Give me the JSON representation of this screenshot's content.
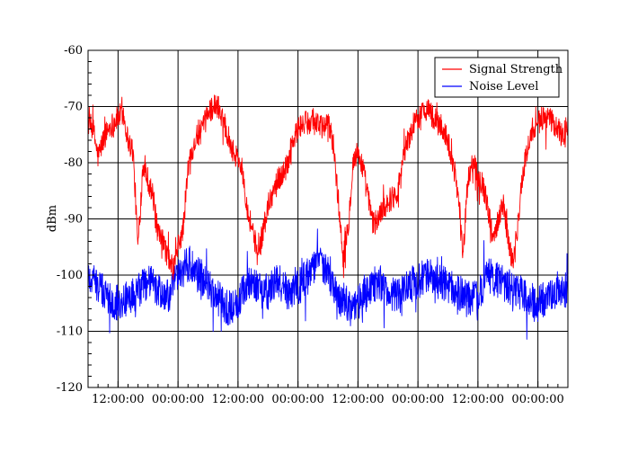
{
  "chart_data": {
    "type": "line",
    "title": "",
    "xlabel": "",
    "ylabel": "dBm",
    "ylim": [
      -120,
      -60
    ],
    "yticks": [
      -60,
      -70,
      -80,
      -90,
      -100,
      -110,
      -120
    ],
    "x_tick_labels": [
      "12:00:00",
      "00:00:00",
      "12:00:00",
      "00:00:00",
      "12:00:00",
      "00:00:00",
      "12:00:00",
      "00:00:00"
    ],
    "x_range_hours": [
      0,
      96
    ],
    "grid": true,
    "legend_position": "top-right",
    "series": [
      {
        "name": "Signal Strength",
        "color": "#ff0000",
        "x_hours": [
          0,
          1,
          2,
          3,
          4,
          5,
          6,
          7,
          8,
          9,
          10,
          11,
          12,
          13,
          14,
          15,
          16,
          17,
          18,
          19,
          20,
          21,
          22,
          23,
          24,
          25,
          26,
          27,
          28,
          29,
          30,
          31,
          32,
          33,
          34,
          35,
          36,
          37,
          38,
          39,
          40,
          41,
          42,
          43,
          44,
          45,
          46,
          47,
          48,
          49,
          50,
          51,
          52,
          53,
          54,
          55,
          56,
          57,
          58,
          59,
          60,
          61,
          62,
          63,
          64,
          65,
          66,
          67,
          68,
          69,
          70,
          71,
          72,
          73,
          74,
          75,
          76,
          77,
          78,
          79,
          80,
          81,
          82,
          83,
          84,
          85,
          86,
          87,
          88,
          89,
          90,
          91,
          92,
          93,
          94,
          95,
          96
        ],
        "values": [
          -73,
          -74,
          -79,
          -76,
          -74,
          -73,
          -72,
          -71,
          -76,
          -78,
          -95,
          -80,
          -83,
          -86,
          -93,
          -94,
          -97,
          -99,
          -95,
          -92,
          -81,
          -77,
          -75,
          -74,
          -71,
          -70,
          -70,
          -72,
          -75,
          -78,
          -79,
          -82,
          -89,
          -92,
          -97,
          -92,
          -88,
          -85,
          -83,
          -82,
          -80,
          -76,
          -74,
          -73,
          -73,
          -72,
          -73,
          -74,
          -73,
          -76,
          -86,
          -97,
          -92,
          -80,
          -78,
          -81,
          -86,
          -91,
          -90,
          -88,
          -87,
          -86,
          -85,
          -79,
          -76,
          -74,
          -72,
          -71,
          -70,
          -72,
          -73,
          -74,
          -76,
          -80,
          -85,
          -97,
          -83,
          -80,
          -82,
          -84,
          -88,
          -94,
          -90,
          -87,
          -93,
          -98,
          -91,
          -82,
          -77,
          -74,
          -73,
          -72,
          -72,
          -73,
          -74,
          -75,
          -73
        ]
      },
      {
        "name": "Noise Level",
        "color": "#0000ff",
        "x_hours": [
          0,
          2,
          4,
          6,
          8,
          10,
          12,
          14,
          16,
          18,
          20,
          22,
          24,
          26,
          28,
          30,
          32,
          34,
          36,
          38,
          40,
          42,
          44,
          46,
          48,
          50,
          52,
          54,
          56,
          58,
          60,
          62,
          64,
          66,
          68,
          70,
          72,
          74,
          76,
          78,
          80,
          82,
          84,
          86,
          88,
          90,
          92,
          94,
          96
        ],
        "values": [
          -100,
          -102,
          -104,
          -105,
          -104,
          -103,
          -101,
          -103,
          -104,
          -100,
          -98,
          -100,
          -102,
          -104,
          -106,
          -105,
          -101,
          -102,
          -103,
          -101,
          -103,
          -102,
          -100,
          -97,
          -100,
          -104,
          -105,
          -105,
          -103,
          -101,
          -103,
          -104,
          -102,
          -101,
          -100,
          -101,
          -102,
          -103,
          -104,
          -104,
          -100,
          -101,
          -102,
          -103,
          -104,
          -105,
          -104,
          -102,
          -103
        ]
      }
    ]
  }
}
